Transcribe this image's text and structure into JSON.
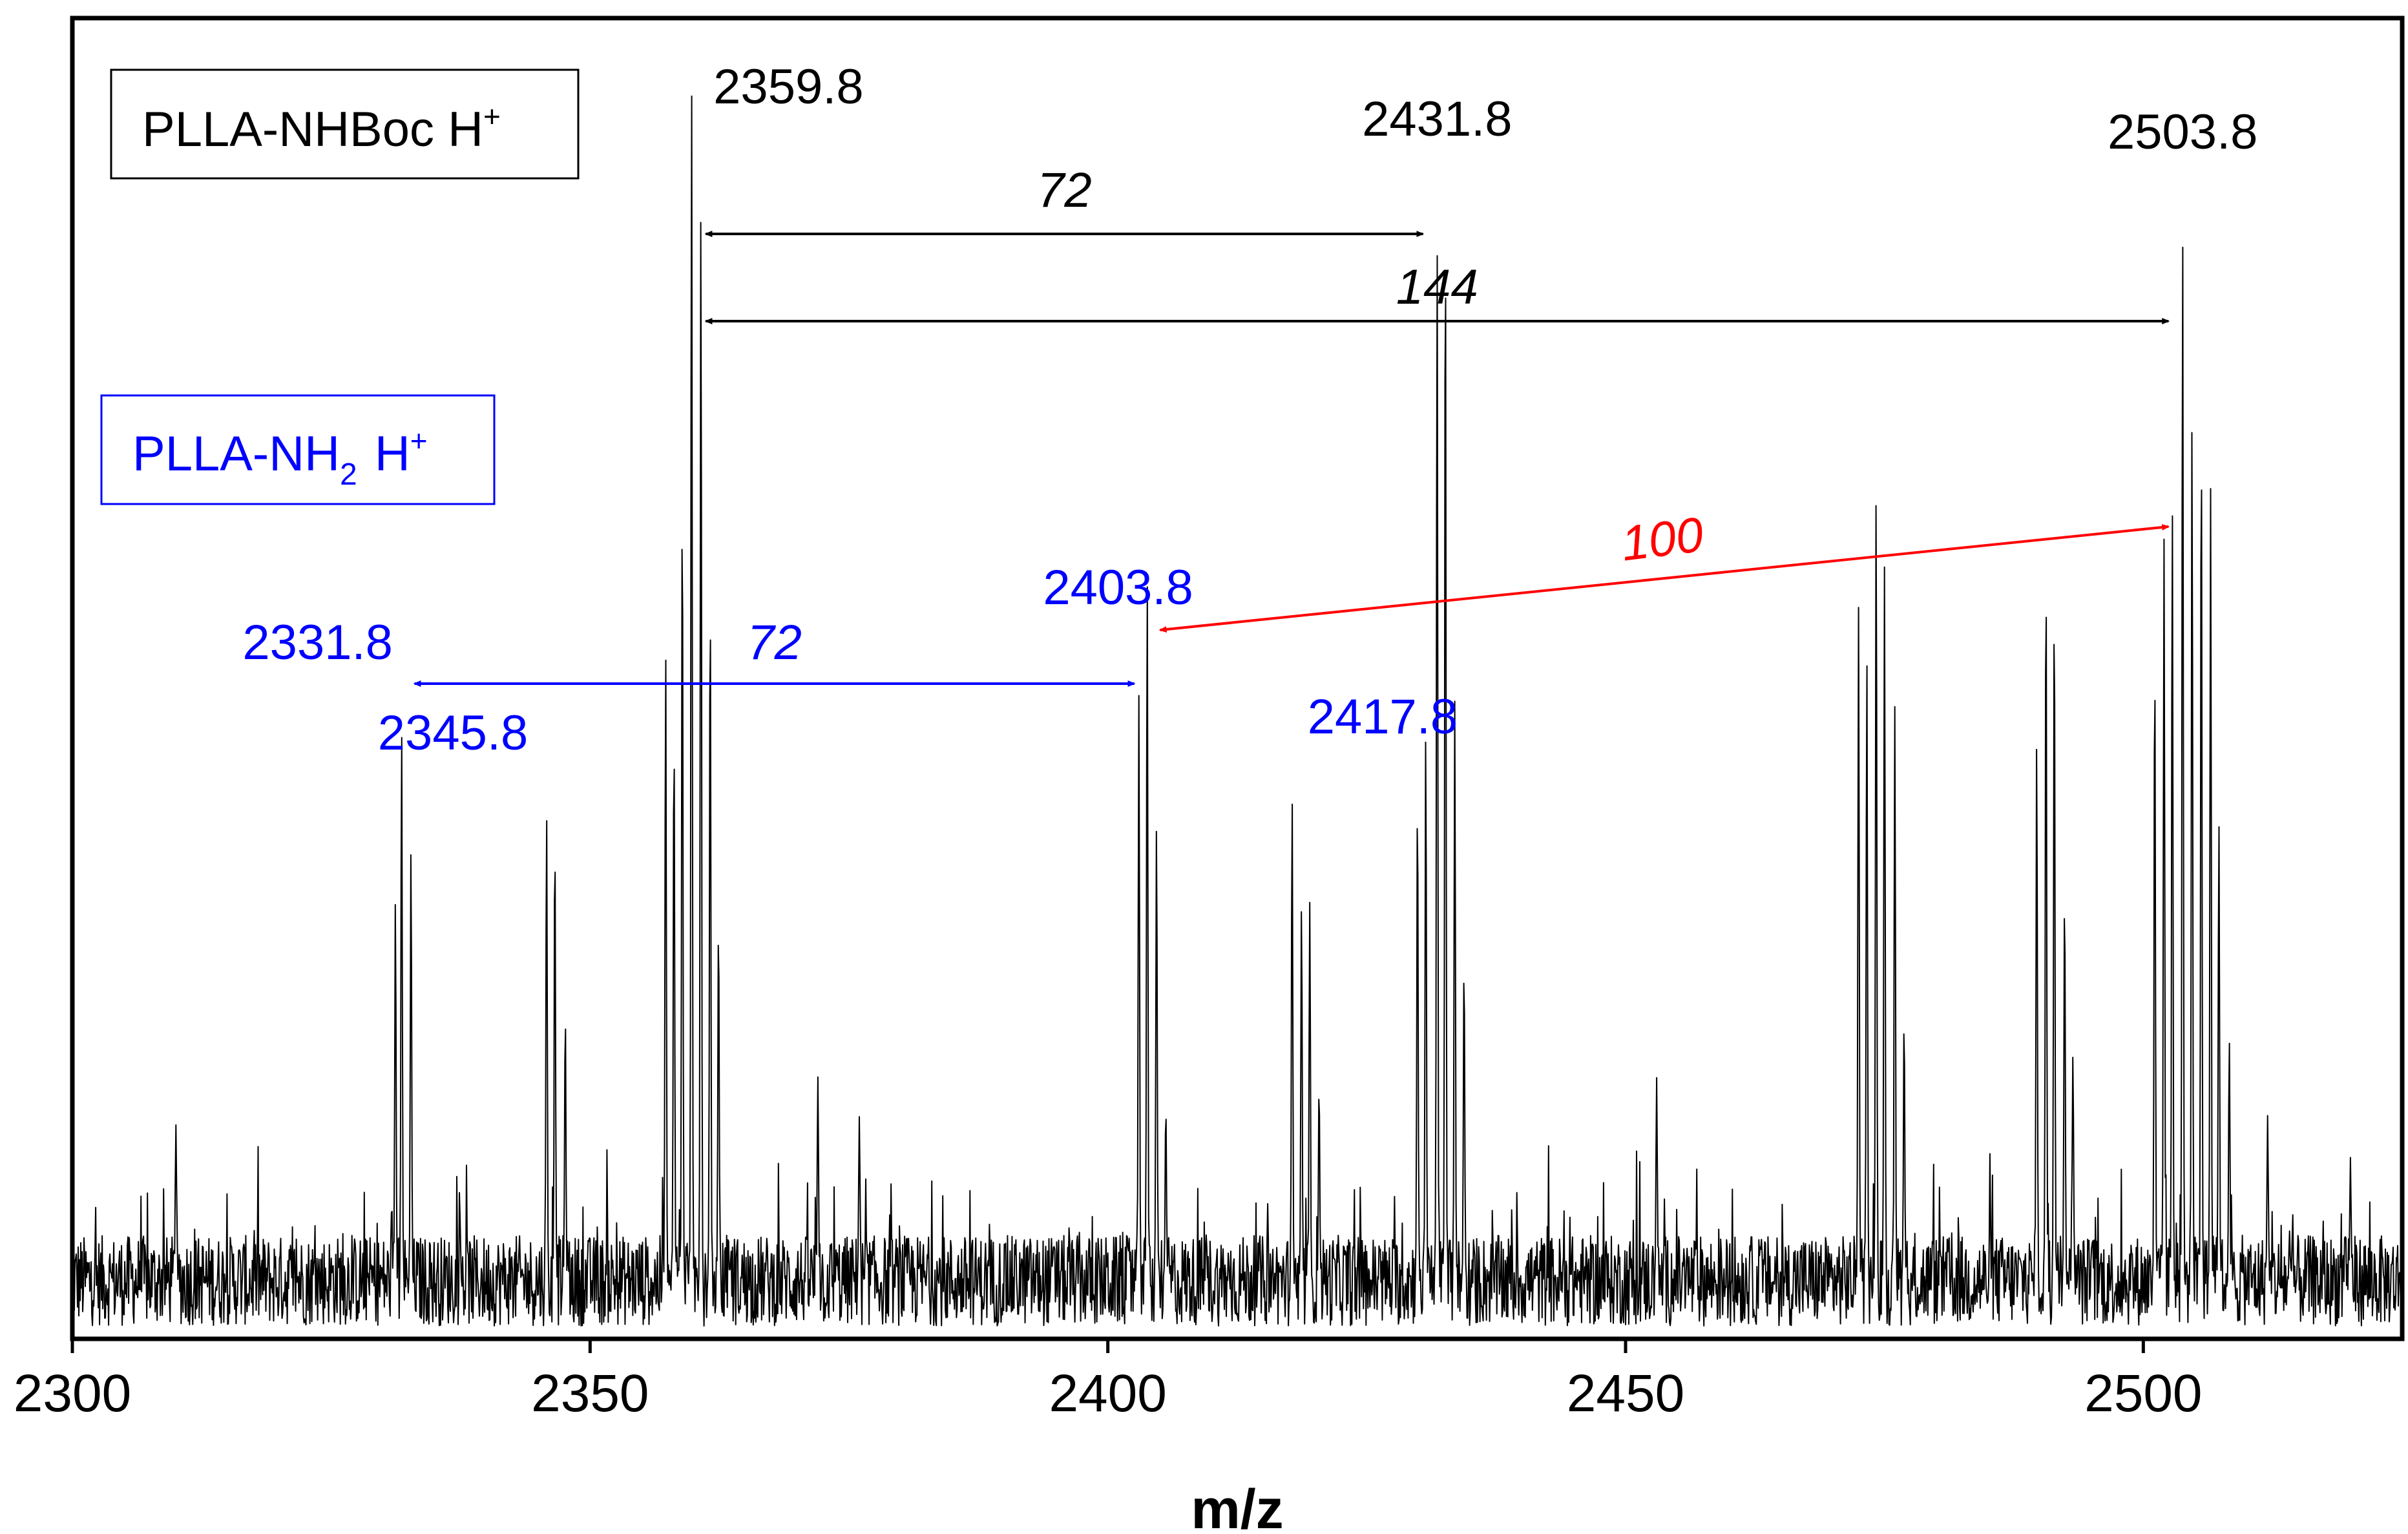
{
  "chart_data": {
    "type": "line",
    "title": "",
    "xlabel": "m/z",
    "ylabel": "",
    "xlim": [
      2300,
      2525
    ],
    "ylim": [
      0,
      1
    ],
    "x_ticks": [
      "2300",
      "2350",
      "2400",
      "2450",
      "2500"
    ],
    "x_tick_values": [
      2300,
      2350,
      2400,
      2450,
      2500
    ],
    "grid": false,
    "legend": {
      "placement": "top-left",
      "entries": [
        {
          "base": "PLLA-NHBoc H",
          "sub": "",
          "sup": "+",
          "color": "#000000"
        },
        {
          "base": "PLLA-NH",
          "sub": "2",
          "sup": " H+",
          "color": "#0000ff"
        }
      ]
    },
    "series": [
      {
        "color": "#000000",
        "baseline": 0.045,
        "noise": 0.035,
        "peaks": [
          {
            "x": 2310.0,
            "y": 0.17
          },
          {
            "x": 2331.2,
            "y": 0.34
          },
          {
            "x": 2331.8,
            "y": 0.47
          },
          {
            "x": 2332.7,
            "y": 0.38
          },
          {
            "x": 2345.8,
            "y": 0.41
          },
          {
            "x": 2346.6,
            "y": 0.39
          },
          {
            "x": 2347.6,
            "y": 0.25
          },
          {
            "x": 2357.3,
            "y": 0.53
          },
          {
            "x": 2358.1,
            "y": 0.47
          },
          {
            "x": 2358.9,
            "y": 0.66
          },
          {
            "x": 2359.8,
            "y": 0.98
          },
          {
            "x": 2360.7,
            "y": 0.88
          },
          {
            "x": 2361.6,
            "y": 0.58
          },
          {
            "x": 2362.4,
            "y": 0.32
          },
          {
            "x": 2372.0,
            "y": 0.2
          },
          {
            "x": 2376.0,
            "y": 0.17
          },
          {
            "x": 2403.0,
            "y": 0.5
          },
          {
            "x": 2403.8,
            "y": 0.59
          },
          {
            "x": 2404.7,
            "y": 0.4
          },
          {
            "x": 2405.6,
            "y": 0.18
          },
          {
            "x": 2417.8,
            "y": 0.42
          },
          {
            "x": 2418.7,
            "y": 0.34
          },
          {
            "x": 2419.5,
            "y": 0.34
          },
          {
            "x": 2420.4,
            "y": 0.2
          },
          {
            "x": 2429.9,
            "y": 0.42
          },
          {
            "x": 2430.7,
            "y": 0.47
          },
          {
            "x": 2431.8,
            "y": 0.85
          },
          {
            "x": 2432.6,
            "y": 0.87
          },
          {
            "x": 2433.5,
            "y": 0.49
          },
          {
            "x": 2434.4,
            "y": 0.29
          },
          {
            "x": 2453.0,
            "y": 0.2
          },
          {
            "x": 2472.5,
            "y": 0.57
          },
          {
            "x": 2473.3,
            "y": 0.53
          },
          {
            "x": 2474.2,
            "y": 0.66
          },
          {
            "x": 2475.0,
            "y": 0.6
          },
          {
            "x": 2476.0,
            "y": 0.49
          },
          {
            "x": 2476.9,
            "y": 0.25
          },
          {
            "x": 2489.7,
            "y": 0.46
          },
          {
            "x": 2490.6,
            "y": 0.6
          },
          {
            "x": 2491.4,
            "y": 0.58
          },
          {
            "x": 2492.4,
            "y": 0.35
          },
          {
            "x": 2493.2,
            "y": 0.22
          },
          {
            "x": 2501.1,
            "y": 0.53
          },
          {
            "x": 2502.0,
            "y": 0.62
          },
          {
            "x": 2502.8,
            "y": 0.65
          },
          {
            "x": 2503.8,
            "y": 0.86
          },
          {
            "x": 2504.7,
            "y": 0.71
          },
          {
            "x": 2505.6,
            "y": 0.7
          },
          {
            "x": 2506.5,
            "y": 0.66
          },
          {
            "x": 2507.3,
            "y": 0.4
          },
          {
            "x": 2508.3,
            "y": 0.23
          },
          {
            "x": 2512.0,
            "y": 0.17
          },
          {
            "x": 2520.0,
            "y": 0.14
          }
        ]
      }
    ],
    "annotations": {
      "peak_labels": [
        {
          "text": "2359.8",
          "x": 2359.8,
          "color": "#000000"
        },
        {
          "text": "2431.8",
          "x": 2431.8,
          "color": "#000000"
        },
        {
          "text": "2503.8",
          "x": 2503.8,
          "color": "#000000"
        },
        {
          "text": "2331.8",
          "x": 2331.8,
          "color": "#0000ff"
        },
        {
          "text": "2345.8",
          "x": 2345.8,
          "color": "#0000ff"
        },
        {
          "text": "2403.8",
          "x": 2403.8,
          "color": "#0000ff"
        },
        {
          "text": "2417.8",
          "x": 2417.8,
          "color": "#0000ff"
        }
      ],
      "spacing_arrows": [
        {
          "label": "72",
          "from": 2359.8,
          "to": 2431.8,
          "color": "#000000"
        },
        {
          "label": "144",
          "from": 2359.8,
          "to": 2503.8,
          "color": "#000000"
        },
        {
          "label": "72",
          "from": 2331.8,
          "to": 2403.8,
          "color": "#0000ff"
        },
        {
          "label": "100",
          "from": 2403.8,
          "to": 2503.8,
          "color": "#ff0000"
        }
      ]
    }
  }
}
